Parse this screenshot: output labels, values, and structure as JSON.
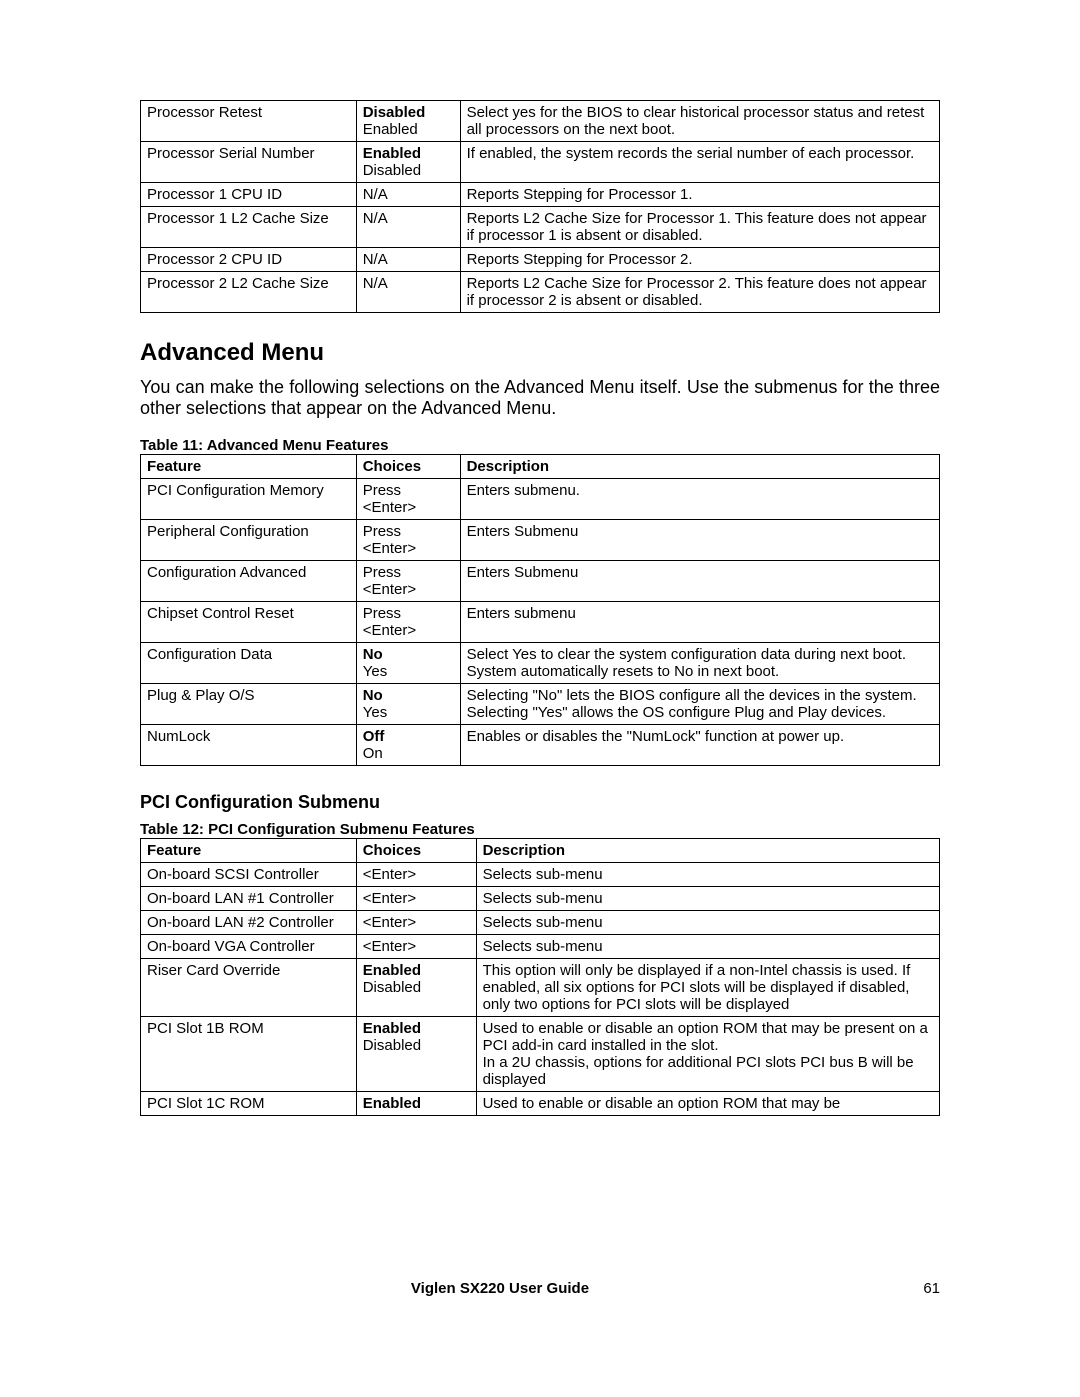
{
  "topTable": {
    "rows": [
      {
        "feature": "Processor Retest",
        "choices": [
          {
            "t": "Disabled",
            "b": true
          },
          {
            "t": "Enabled",
            "b": false
          }
        ],
        "desc": "Select yes for the BIOS to clear historical processor status and retest all processors on the next boot."
      },
      {
        "feature": "Processor Serial Number",
        "choices": [
          {
            "t": "Enabled",
            "b": true
          },
          {
            "t": "Disabled",
            "b": false
          }
        ],
        "desc": "If enabled, the system records the serial number of each processor."
      },
      {
        "feature": "Processor 1 CPU ID",
        "choices": [
          {
            "t": "N/A",
            "b": false
          }
        ],
        "desc": "Reports Stepping for Processor 1."
      },
      {
        "feature": "Processor 1 L2 Cache Size",
        "choices": [
          {
            "t": "N/A",
            "b": false
          }
        ],
        "desc": "Reports L2 Cache Size for Processor 1. This feature does not appear if processor 1 is absent or disabled."
      },
      {
        "feature": "Processor 2 CPU ID",
        "choices": [
          {
            "t": "N/A",
            "b": false
          }
        ],
        "desc": "Reports Stepping for Processor 2."
      },
      {
        "feature": "Processor 2 L2 Cache Size",
        "choices": [
          {
            "t": "N/A",
            "b": false
          }
        ],
        "desc": "Reports L2 Cache Size for Processor 2. This feature does not appear if processor 2 is absent or disabled."
      }
    ]
  },
  "section1": {
    "heading": "Advanced Menu",
    "paragraph": "You can make the following selections on the Advanced Menu itself. Use the submenus for the three other selections that appear on the Advanced Menu."
  },
  "table11": {
    "caption": "Table 11: Advanced Menu Features",
    "headers": {
      "feature": "Feature",
      "choices": "Choices",
      "desc": "Description"
    },
    "rows": [
      {
        "feature": "PCI Configuration Memory",
        "choices": [
          {
            "t": "Press",
            "b": false
          },
          {
            "t": "<Enter>",
            "b": false
          }
        ],
        "desc": "Enters submenu."
      },
      {
        "feature": "Peripheral Configuration",
        "choices": [
          {
            "t": "Press",
            "b": false
          },
          {
            "t": "<Enter>",
            "b": false
          }
        ],
        "desc": "Enters Submenu"
      },
      {
        "feature": "Configuration Advanced",
        "choices": [
          {
            "t": "Press",
            "b": false
          },
          {
            "t": "<Enter>",
            "b": false
          }
        ],
        "desc": "Enters Submenu"
      },
      {
        "feature": "Chipset Control Reset",
        "choices": [
          {
            "t": "Press",
            "b": false
          },
          {
            "t": "<Enter>",
            "b": false
          }
        ],
        "desc": "Enters submenu"
      },
      {
        "feature": "Configuration Data",
        "choices": [
          {
            "t": "No",
            "b": true
          },
          {
            "t": "Yes",
            "b": false
          }
        ],
        "desc": "Select Yes to clear the system configuration data during next boot. System automatically resets to No in next boot."
      },
      {
        "feature": "Plug & Play O/S",
        "choices": [
          {
            "t": "No",
            "b": true
          },
          {
            "t": "Yes",
            "b": false
          }
        ],
        "desc": "Selecting \"No\" lets the BIOS configure all the devices in the system. Selecting \"Yes\" allows the OS configure Plug and Play devices."
      },
      {
        "feature": "NumLock",
        "choices": [
          {
            "t": "Off",
            "b": true
          },
          {
            "t": "On",
            "b": false
          }
        ],
        "desc": "Enables or disables the \"NumLock\" function at power up."
      }
    ]
  },
  "subsection": {
    "heading": "PCI Configuration Submenu"
  },
  "table12": {
    "caption": "Table 12: PCI Configuration Submenu Features",
    "headers": {
      "feature": "Feature",
      "choices": "Choices",
      "desc": "Description"
    },
    "rows": [
      {
        "feature": "On-board SCSI Controller",
        "choices": [
          {
            "t": "<Enter>",
            "b": false
          }
        ],
        "desc": "Selects sub-menu"
      },
      {
        "feature": "On-board LAN #1 Controller",
        "choices": [
          {
            "t": "<Enter>",
            "b": false
          }
        ],
        "desc": "Selects sub-menu"
      },
      {
        "feature": "On-board LAN #2 Controller",
        "choices": [
          {
            "t": "<Enter>",
            "b": false
          }
        ],
        "desc": "Selects sub-menu"
      },
      {
        "feature": "On-board VGA Controller",
        "choices": [
          {
            "t": "<Enter>",
            "b": false
          }
        ],
        "desc": "Selects sub-menu"
      },
      {
        "feature": "Riser Card Override",
        "choices": [
          {
            "t": "Enabled",
            "b": true
          },
          {
            "t": "Disabled",
            "b": false
          }
        ],
        "desc": "This option will only be displayed if a non-Intel chassis is used. If enabled, all six options for PCI slots will be displayed if disabled, only two options for PCI slots will be displayed"
      },
      {
        "feature": "PCI Slot 1B ROM",
        "choices": [
          {
            "t": "Enabled",
            "b": true
          },
          {
            "t": "Disabled",
            "b": false
          }
        ],
        "desc": "Used to enable or disable an option ROM that may be present on a PCI add-in card installed in the slot.\nIn a 2U chassis, options for additional PCI slots PCI bus B will be displayed"
      },
      {
        "feature": "PCI Slot 1C ROM",
        "choices": [
          {
            "t": "Enabled",
            "b": true
          }
        ],
        "desc": "Used to enable or disable an option ROM that may be"
      }
    ]
  },
  "footer": {
    "title": "Viglen SX220 User Guide",
    "page": "61"
  }
}
